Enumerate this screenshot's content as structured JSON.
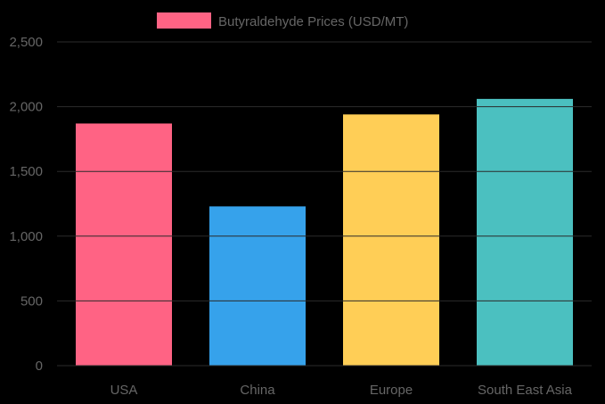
{
  "chart_data": {
    "type": "bar",
    "categories": [
      "USA",
      "China",
      "Europe",
      "South East Asia"
    ],
    "series": [
      {
        "name": "Butyraldehyde Prices (USD/MT)",
        "values": [
          1870,
          1230,
          1940,
          2060
        ],
        "colors": [
          "#ff6384",
          "#36a2eb",
          "#ffce56",
          "#4bc0c0"
        ]
      }
    ],
    "y_ticks": [
      "0",
      "500",
      "1,000",
      "1,500",
      "2,000",
      "2,500"
    ],
    "ylim": [
      0,
      2500
    ],
    "grid": true,
    "legend_position": "top",
    "legend_color": "#ff6384",
    "grid_color": "#2b2b2b",
    "background": "#000000",
    "xlabel": "",
    "ylabel": ""
  }
}
